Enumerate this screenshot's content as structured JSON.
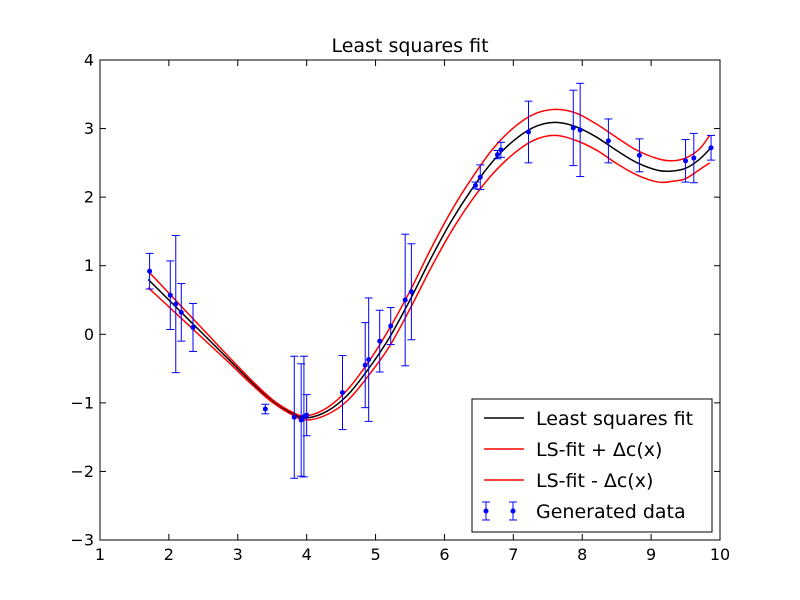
{
  "chart_data": {
    "type": "line",
    "title": "Least squares fit",
    "xlabel": "",
    "ylabel": "",
    "xlim": [
      1,
      10
    ],
    "ylim": [
      -3,
      4
    ],
    "xticks": [
      1,
      2,
      3,
      4,
      5,
      6,
      7,
      8,
      9,
      10
    ],
    "yticks": [
      -3,
      -2,
      -1,
      0,
      1,
      2,
      3,
      4
    ],
    "grid": false,
    "legend_position": "lower-right",
    "series": [
      {
        "name": "Least squares fit",
        "kind": "line",
        "color": "#000000",
        "points": [
          [
            1.7,
            0.8
          ],
          [
            2.0,
            0.5
          ],
          [
            2.3,
            0.2
          ],
          [
            2.6,
            -0.1
          ],
          [
            2.9,
            -0.4
          ],
          [
            3.2,
            -0.7
          ],
          [
            3.5,
            -0.97
          ],
          [
            3.8,
            -1.16
          ],
          [
            4.0,
            -1.22
          ],
          [
            4.3,
            -1.12
          ],
          [
            4.6,
            -0.88
          ],
          [
            4.9,
            -0.5
          ],
          [
            5.2,
            -0.05
          ],
          [
            5.5,
            0.5
          ],
          [
            5.8,
            1.1
          ],
          [
            6.1,
            1.65
          ],
          [
            6.4,
            2.12
          ],
          [
            6.7,
            2.52
          ],
          [
            7.0,
            2.82
          ],
          [
            7.3,
            3.02
          ],
          [
            7.6,
            3.09
          ],
          [
            7.9,
            3.03
          ],
          [
            8.2,
            2.88
          ],
          [
            8.5,
            2.68
          ],
          [
            8.8,
            2.5
          ],
          [
            9.1,
            2.39
          ],
          [
            9.3,
            2.38
          ],
          [
            9.5,
            2.42
          ],
          [
            9.7,
            2.55
          ],
          [
            9.85,
            2.7
          ]
        ]
      },
      {
        "name": "LS-fit + Δc(x)",
        "kind": "line",
        "color": "#ff0000",
        "points": [
          [
            1.7,
            0.92
          ],
          [
            2.0,
            0.6
          ],
          [
            2.3,
            0.28
          ],
          [
            2.6,
            -0.04
          ],
          [
            2.9,
            -0.36
          ],
          [
            3.2,
            -0.67
          ],
          [
            3.5,
            -0.95
          ],
          [
            3.8,
            -1.14
          ],
          [
            4.0,
            -1.19
          ],
          [
            4.3,
            -1.07
          ],
          [
            4.6,
            -0.8
          ],
          [
            4.9,
            -0.4
          ],
          [
            5.2,
            0.08
          ],
          [
            5.5,
            0.63
          ],
          [
            5.8,
            1.24
          ],
          [
            6.1,
            1.8
          ],
          [
            6.4,
            2.28
          ],
          [
            6.7,
            2.7
          ],
          [
            7.0,
            3.01
          ],
          [
            7.3,
            3.21
          ],
          [
            7.6,
            3.28
          ],
          [
            7.9,
            3.23
          ],
          [
            8.2,
            3.07
          ],
          [
            8.5,
            2.87
          ],
          [
            8.8,
            2.68
          ],
          [
            9.1,
            2.56
          ],
          [
            9.3,
            2.53
          ],
          [
            9.5,
            2.57
          ],
          [
            9.7,
            2.7
          ],
          [
            9.85,
            2.9
          ]
        ]
      },
      {
        "name": "LS-fit - Δc(x)",
        "kind": "line",
        "color": "#ff0000",
        "points": [
          [
            1.7,
            0.68
          ],
          [
            2.0,
            0.4
          ],
          [
            2.3,
            0.12
          ],
          [
            2.6,
            -0.16
          ],
          [
            2.9,
            -0.44
          ],
          [
            3.2,
            -0.73
          ],
          [
            3.5,
            -0.99
          ],
          [
            3.8,
            -1.18
          ],
          [
            4.0,
            -1.25
          ],
          [
            4.3,
            -1.17
          ],
          [
            4.6,
            -0.96
          ],
          [
            4.9,
            -0.6
          ],
          [
            5.2,
            -0.18
          ],
          [
            5.5,
            0.37
          ],
          [
            5.8,
            0.96
          ],
          [
            6.1,
            1.5
          ],
          [
            6.4,
            1.96
          ],
          [
            6.7,
            2.34
          ],
          [
            7.0,
            2.63
          ],
          [
            7.3,
            2.83
          ],
          [
            7.6,
            2.9
          ],
          [
            7.9,
            2.83
          ],
          [
            8.2,
            2.69
          ],
          [
            8.5,
            2.49
          ],
          [
            8.8,
            2.32
          ],
          [
            9.1,
            2.22
          ],
          [
            9.3,
            2.23
          ],
          [
            9.5,
            2.27
          ],
          [
            9.7,
            2.4
          ],
          [
            9.85,
            2.5
          ]
        ]
      },
      {
        "name": "Generated data",
        "kind": "errorbar",
        "color": "#0000ff",
        "points": [
          {
            "x": 1.72,
            "y": 0.92,
            "err": 0.26
          },
          {
            "x": 2.02,
            "y": 0.57,
            "err": 0.5
          },
          {
            "x": 2.1,
            "y": 0.44,
            "err": 1.0
          },
          {
            "x": 2.18,
            "y": 0.32,
            "err": 0.42
          },
          {
            "x": 2.35,
            "y": 0.1,
            "err": 0.35
          },
          {
            "x": 3.4,
            "y": -1.09,
            "err": 0.07
          },
          {
            "x": 3.82,
            "y": -1.21,
            "err": 0.89
          },
          {
            "x": 3.92,
            "y": -1.25,
            "err": 0.82
          },
          {
            "x": 3.96,
            "y": -1.2,
            "err": 0.88
          },
          {
            "x": 4.0,
            "y": -1.18,
            "err": 0.3
          },
          {
            "x": 4.52,
            "y": -0.85,
            "err": 0.54
          },
          {
            "x": 4.85,
            "y": -0.45,
            "err": 0.62
          },
          {
            "x": 4.9,
            "y": -0.37,
            "err": 0.9
          },
          {
            "x": 5.06,
            "y": -0.1,
            "err": 0.45
          },
          {
            "x": 5.22,
            "y": 0.12,
            "err": 0.27
          },
          {
            "x": 5.43,
            "y": 0.5,
            "err": 0.96
          },
          {
            "x": 5.52,
            "y": 0.62,
            "err": 0.7
          },
          {
            "x": 6.45,
            "y": 2.17,
            "err": 0.05
          },
          {
            "x": 6.52,
            "y": 2.29,
            "err": 0.18
          },
          {
            "x": 6.77,
            "y": 2.62,
            "err": 0.06
          },
          {
            "x": 6.82,
            "y": 2.69,
            "err": 0.11
          },
          {
            "x": 7.22,
            "y": 2.95,
            "err": 0.45
          },
          {
            "x": 7.87,
            "y": 3.01,
            "err": 0.55
          },
          {
            "x": 7.97,
            "y": 2.98,
            "err": 0.68
          },
          {
            "x": 8.38,
            "y": 2.82,
            "err": 0.32
          },
          {
            "x": 8.83,
            "y": 2.61,
            "err": 0.24
          },
          {
            "x": 9.5,
            "y": 2.53,
            "err": 0.31
          },
          {
            "x": 9.62,
            "y": 2.57,
            "err": 0.36
          },
          {
            "x": 9.87,
            "y": 2.72,
            "err": 0.18
          }
        ]
      }
    ]
  }
}
